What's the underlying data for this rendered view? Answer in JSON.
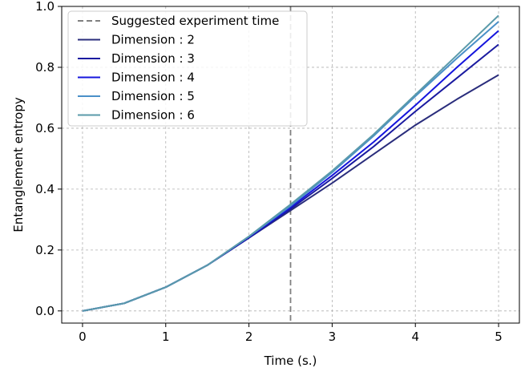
{
  "chart_data": {
    "type": "line",
    "title": "",
    "xlabel": "Time (s.)",
    "ylabel": "Entanglement entropy",
    "xlim": [
      -0.25,
      5.25
    ],
    "ylim": [
      -0.04,
      1.0
    ],
    "xticks": [
      0,
      1,
      2,
      3,
      4,
      5
    ],
    "yticks": [
      0.0,
      0.2,
      0.4,
      0.6,
      0.8,
      1.0
    ],
    "xtick_labels": [
      "0",
      "1",
      "2",
      "3",
      "4",
      "5"
    ],
    "ytick_labels": [
      "0.0",
      "0.2",
      "0.4",
      "0.6",
      "0.8",
      "1.0"
    ],
    "grid": true,
    "legend_position": "top-left",
    "vline": {
      "name": "Suggested experiment time",
      "x": 2.5,
      "color": "#808080",
      "style": "dashed"
    },
    "x": [
      0,
      0.5,
      1,
      1.5,
      2,
      2.5,
      3,
      3.5,
      4,
      4.5,
      5
    ],
    "series": [
      {
        "name": "Dimension : 2",
        "color": "#2a2d7c",
        "values": [
          0.0,
          0.025,
          0.078,
          0.15,
          0.24,
          0.33,
          0.42,
          0.515,
          0.61,
          0.695,
          0.775
        ]
      },
      {
        "name": "Dimension : 3",
        "color": "#1a1aa0",
        "values": [
          0.0,
          0.025,
          0.078,
          0.15,
          0.24,
          0.335,
          0.435,
          0.54,
          0.655,
          0.765,
          0.875
        ]
      },
      {
        "name": "Dimension : 4",
        "color": "#1515dd",
        "values": [
          0.0,
          0.025,
          0.078,
          0.15,
          0.243,
          0.34,
          0.445,
          0.555,
          0.675,
          0.8,
          0.92
        ]
      },
      {
        "name": "Dimension : 5",
        "color": "#4a90c8",
        "values": [
          0.0,
          0.025,
          0.078,
          0.15,
          0.244,
          0.345,
          0.455,
          0.575,
          0.705,
          0.83,
          0.95
        ]
      },
      {
        "name": "Dimension : 6",
        "color": "#5a9aaa",
        "values": [
          0.0,
          0.025,
          0.078,
          0.15,
          0.245,
          0.35,
          0.46,
          0.58,
          0.71,
          0.84,
          0.97
        ]
      }
    ]
  }
}
